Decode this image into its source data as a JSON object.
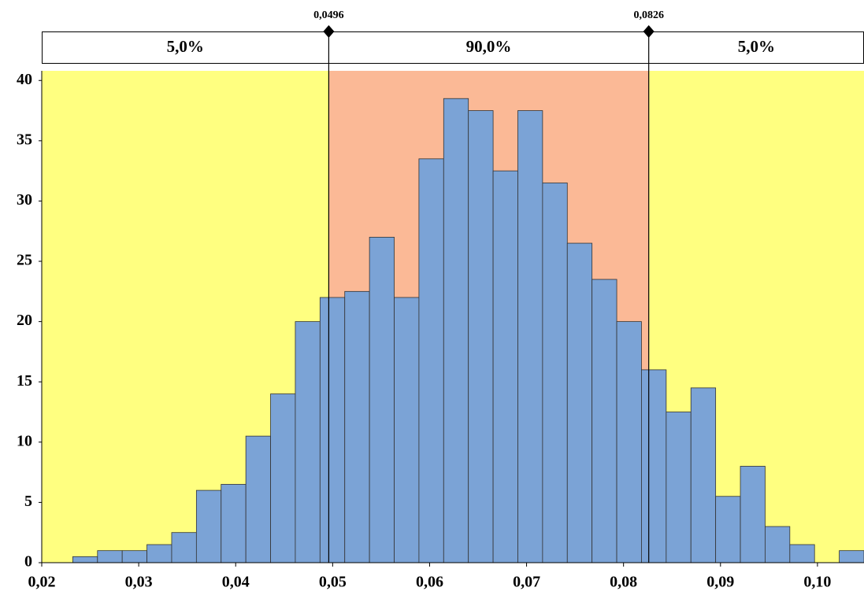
{
  "chart_data": {
    "type": "histogram",
    "bins": [
      0.0232,
      0.02575,
      0.0283,
      0.03085,
      0.0334,
      0.03595,
      0.0385,
      0.04105,
      0.0436,
      0.04615,
      0.0487,
      0.05125,
      0.0538,
      0.05635,
      0.0589,
      0.06145,
      0.064,
      0.06655,
      0.0691,
      0.07165,
      0.0742,
      0.07675,
      0.0793,
      0.08185,
      0.0844,
      0.08695,
      0.0895,
      0.09205,
      0.0946,
      0.09715,
      0.0997,
      0.10225,
      0.1048
    ],
    "values": [
      0.5,
      1,
      1,
      1.5,
      2.5,
      6,
      6.5,
      10.5,
      14,
      20,
      22,
      22.5,
      27,
      22,
      33.5,
      38.5,
      37.5,
      32.5,
      37.5,
      31.5,
      26.5,
      23.5,
      20,
      16,
      12.5,
      14.5,
      5.5,
      8,
      3,
      1.5,
      0,
      1
    ],
    "color": "#7ba3d6",
    "xlim": [
      0.02,
      0.1048
    ],
    "xticks": [
      {
        "value": 0.02,
        "label": "0,02"
      },
      {
        "value": 0.03,
        "label": "0,03"
      },
      {
        "value": 0.04,
        "label": "0,04"
      },
      {
        "value": 0.05,
        "label": "0,05"
      },
      {
        "value": 0.06,
        "label": "0,06"
      },
      {
        "value": 0.07,
        "label": "0,07"
      },
      {
        "value": 0.08,
        "label": "0,08"
      },
      {
        "value": 0.09,
        "label": "0,09"
      },
      {
        "value": 0.1,
        "label": "0,10"
      }
    ],
    "ylim": [
      0,
      40.8
    ],
    "yticks": [
      0,
      5,
      10,
      15,
      20,
      25,
      30,
      35,
      40
    ],
    "delimiters": [
      {
        "value": 0.0496,
        "label": "0,0496"
      },
      {
        "value": 0.0826,
        "label": "0,0826"
      }
    ],
    "bands": [
      {
        "value": 5,
        "label": "5,0%"
      },
      {
        "value": 90,
        "label": "90,0%"
      },
      {
        "value": 5,
        "label": "5,0%"
      }
    ],
    "region_colors": [
      "#ffff80",
      "#fbb996",
      "#ffff80"
    ]
  }
}
